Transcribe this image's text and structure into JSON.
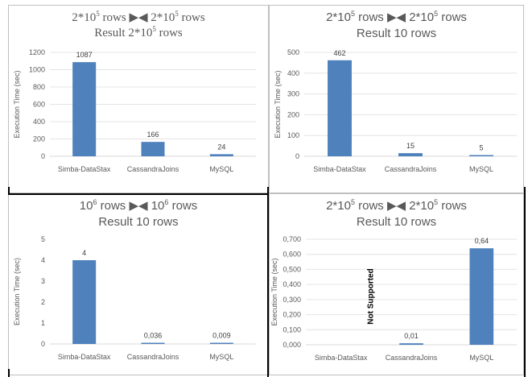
{
  "chart_data": [
    {
      "type": "bar",
      "title_parts": [
        "2*10",
        "5",
        " rows ▶◀ 2*10",
        "5",
        " rows"
      ],
      "subtitle_parts": [
        "Result 2*10",
        "5",
        " rows"
      ],
      "ylabel": "Execution Time (sec)",
      "categories": [
        "Simba-DataStax",
        "CassandraJoins",
        "MySQL"
      ],
      "values": [
        1087,
        166,
        24
      ],
      "value_labels": [
        "1087",
        "166",
        "24"
      ],
      "ylim": [
        0,
        1200
      ],
      "yticks": [
        "0",
        "200",
        "400",
        "600",
        "800",
        "1000",
        "1200"
      ],
      "bar_color": "#4f81bd",
      "grid": true
    },
    {
      "type": "bar",
      "title_parts": [
        "2*10",
        "5",
        " rows ▶◀ 2*10",
        "5",
        " rows"
      ],
      "subtitle_parts": [
        "Result 10 rows"
      ],
      "ylabel": "Execution Time (sec)",
      "categories": [
        "Simba-DataStax",
        "CassandraJoins",
        "MySQL"
      ],
      "values": [
        462,
        15,
        5
      ],
      "value_labels": [
        "462",
        "15",
        "5"
      ],
      "ylim": [
        0,
        500
      ],
      "yticks": [
        "0",
        "100",
        "200",
        "300",
        "400",
        "500"
      ],
      "bar_color": "#4f81bd",
      "grid": true
    },
    {
      "type": "bar",
      "title_parts": [
        "10",
        "6",
        " rows ▶◀ 10",
        "6",
        " rows"
      ],
      "subtitle_parts": [
        "Result 10 rows"
      ],
      "ylabel": "Execution Time (sec)",
      "categories": [
        "Simba-DataStax",
        "CassandraJoins",
        "MySQL"
      ],
      "values": [
        4,
        0.036,
        0.009
      ],
      "value_labels": [
        "4",
        "0,036",
        "0,009"
      ],
      "ylim": [
        0,
        5
      ],
      "yticks": [
        "0",
        "1",
        "2",
        "3",
        "4",
        "5"
      ],
      "bar_color": "#4f81bd",
      "grid": false
    },
    {
      "type": "bar",
      "title_parts": [
        "2*10",
        "5",
        " rows ▶◀ 2*10",
        "5",
        " rows"
      ],
      "subtitle_parts": [
        "Result 10 rows"
      ],
      "ylabel": "Execution Time (sec)",
      "categories": [
        "Simba-DataStax",
        "CassandraJoins",
        "MySQL"
      ],
      "values": [
        null,
        0.01,
        0.64
      ],
      "value_labels": [
        "",
        "0,01",
        "0,64"
      ],
      "annotation": "Not Supported",
      "ylim": [
        0,
        0.7
      ],
      "yticks": [
        "0,000",
        "0,100",
        "0,200",
        "0,300",
        "0,400",
        "0,500",
        "0,600",
        "0,700"
      ],
      "bar_color": "#4f81bd",
      "grid": true
    }
  ]
}
